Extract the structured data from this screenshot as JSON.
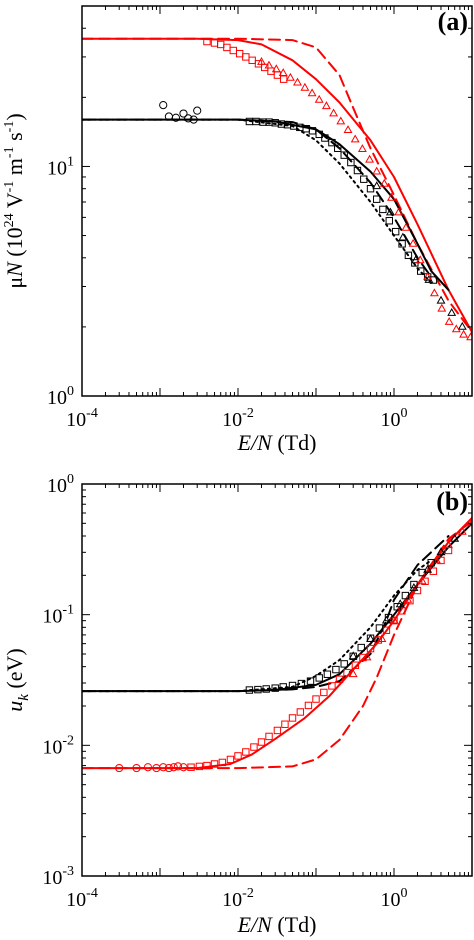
{
  "chart_data": [
    {
      "type": "line",
      "panel_label": "(a)",
      "xlabel_italic": "E/N",
      "xlabel_unit": " (Td)",
      "ylabel_parts": [
        "μ",
        "N",
        " (10",
        "24",
        " V",
        "-1",
        " m",
        "-1",
        " s",
        "-1",
        ")"
      ],
      "xscale": "log",
      "yscale": "log",
      "xlim": [
        0.0001,
        10
      ],
      "ylim": [
        1,
        50
      ],
      "x_ticks": [
        {
          "value": 0.0001,
          "base": "10",
          "exp": "-4"
        },
        {
          "value": 0.01,
          "base": "10",
          "exp": "-2"
        },
        {
          "value": 1,
          "base": "10",
          "exp": "0"
        }
      ],
      "y_ticks": [
        {
          "value": 1,
          "base": "10",
          "exp": "0"
        },
        {
          "value": 10,
          "base": "10",
          "exp": "1"
        }
      ],
      "series": [
        {
          "style": "solid",
          "color": "#ff0000",
          "width": 2,
          "x": [
            0.0001,
            0.003,
            0.01,
            0.02,
            0.05,
            0.1,
            0.2,
            0.5,
            1,
            2,
            5,
            10
          ],
          "y": [
            36,
            36,
            35.5,
            34,
            29,
            24,
            19,
            13,
            9,
            5.6,
            2.9,
            1.9
          ]
        },
        {
          "style": "dashed",
          "color": "#ff0000",
          "width": 2,
          "x": [
            0.0001,
            0.01,
            0.05,
            0.1,
            0.2,
            0.3,
            0.5,
            1,
            2,
            5,
            10
          ],
          "y": [
            36,
            36,
            35.5,
            33,
            25,
            18,
            12,
            7.5,
            4.6,
            2.6,
            1.9
          ]
        },
        {
          "style": "solid",
          "color": "#000000",
          "width": 2,
          "x": [
            0.0001,
            0.01,
            0.03,
            0.1,
            0.2,
            0.5,
            1,
            2,
            3,
            5
          ],
          "y": [
            16,
            16,
            15.7,
            14.5,
            12.5,
            9.5,
            7.2,
            4.6,
            3.5,
            2.9
          ]
        },
        {
          "style": "dashed",
          "color": "#000000",
          "width": 2,
          "x": [
            0.0001,
            0.01,
            0.05,
            0.1,
            0.2,
            0.5,
            1,
            2,
            3
          ],
          "y": [
            16,
            16,
            15.6,
            14.5,
            12,
            8.5,
            6,
            4,
            3.3
          ]
        },
        {
          "style": "dotted",
          "color": "#000000",
          "width": 2,
          "x": [
            0.0001,
            0.01,
            0.05,
            0.1,
            0.2,
            0.5,
            1,
            2,
            3
          ],
          "y": [
            16,
            16,
            15,
            13,
            10.3,
            7,
            5,
            3.6,
            3.1
          ]
        }
      ],
      "markers": [
        {
          "shape": "circle",
          "color": "#000000",
          "x": [
            0.0011,
            0.0013,
            0.0016,
            0.002,
            0.0023,
            0.0027,
            0.003
          ],
          "y": [
            18.5,
            16.5,
            16.3,
            17,
            16.2,
            16,
            17.5
          ]
        },
        {
          "shape": "square",
          "color": "#000000",
          "x": [
            0.014,
            0.017,
            0.021,
            0.025,
            0.03,
            0.036,
            0.043,
            0.052,
            0.062,
            0.075,
            0.09,
            0.11,
            0.13,
            0.16,
            0.19,
            0.23,
            0.28,
            0.34,
            0.41,
            0.5,
            0.6,
            0.72,
            0.87,
            1.05,
            1.27,
            1.53,
            1.85,
            2.2,
            2.7,
            3.2
          ],
          "y": [
            15.7,
            15.7,
            15.6,
            15.6,
            15.5,
            15.3,
            15.2,
            15,
            14.8,
            14.6,
            14.3,
            13.8,
            13.3,
            12.7,
            12,
            11.2,
            10.4,
            9.6,
            8.8,
            8,
            7.2,
            6.5,
            5.8,
            5.2,
            4.6,
            4.1,
            3.8,
            3.5,
            3.3,
            3.2
          ]
        },
        {
          "shape": "triangle",
          "color": "#000000",
          "x": [
            0.6,
            0.9,
            1.3,
            1.9,
            2.8,
            4,
            5.5,
            7.5
          ],
          "y": [
            8.2,
            6.3,
            4.9,
            3.9,
            3.2,
            2.6,
            2.3,
            2
          ]
        },
        {
          "shape": "square",
          "color": "#ff0000",
          "x": [
            0.004,
            0.005,
            0.006,
            0.0072,
            0.0087,
            0.0105,
            0.0126,
            0.0152,
            0.0183,
            0.022,
            0.0265,
            0.032,
            0.0385
          ],
          "y": [
            35,
            34.5,
            34,
            33,
            32,
            31,
            30,
            29,
            28,
            27,
            26,
            25,
            24
          ]
        },
        {
          "shape": "triangle",
          "color": "#ff0000",
          "x": [
            0.02,
            0.025,
            0.031,
            0.038,
            0.047,
            0.058,
            0.072,
            0.089,
            0.11,
            0.136,
            0.168,
            0.208,
            0.257,
            0.318,
            0.393,
            0.486,
            0.6,
            0.75,
            0.93,
            1.15,
            1.42,
            1.76,
            2.17,
            2.7,
            3.3,
            4.1,
            5.1,
            6.3,
            7.8,
            9.6
          ],
          "y": [
            28.5,
            27.5,
            26.5,
            25.5,
            24.3,
            23.2,
            22,
            20.8,
            19.5,
            18.3,
            17,
            15.7,
            14.4,
            13.1,
            11.9,
            10.7,
            9.5,
            8.4,
            7.3,
            6.3,
            5.4,
            4.6,
            3.9,
            3.3,
            2.8,
            2.4,
            2.1,
            1.95,
            1.85,
            1.8
          ]
        }
      ]
    },
    {
      "type": "line",
      "panel_label": "(b)",
      "xlabel_italic": "E/N",
      "xlabel_unit": " (Td)",
      "ylabel_parts": [
        "u",
        "k",
        " (eV)"
      ],
      "xscale": "log",
      "yscale": "log",
      "xlim": [
        0.0001,
        10
      ],
      "ylim": [
        0.001,
        1
      ],
      "x_ticks": [
        {
          "value": 0.0001,
          "base": "10",
          "exp": "-4"
        },
        {
          "value": 0.01,
          "base": "10",
          "exp": "-2"
        },
        {
          "value": 1,
          "base": "10",
          "exp": "0"
        }
      ],
      "y_ticks": [
        {
          "value": 0.001,
          "base": "10",
          "exp": "-3"
        },
        {
          "value": 0.01,
          "base": "10",
          "exp": "-2"
        },
        {
          "value": 0.1,
          "base": "10",
          "exp": "-1"
        },
        {
          "value": 1,
          "base": "10",
          "exp": "0"
        }
      ],
      "series": [
        {
          "style": "solid",
          "color": "#000000",
          "width": 2,
          "x": [
            0.0001,
            0.01,
            0.03,
            0.1,
            0.2,
            0.5,
            1,
            2,
            5,
            10
          ],
          "y": [
            0.026,
            0.026,
            0.0265,
            0.029,
            0.035,
            0.06,
            0.1,
            0.17,
            0.33,
            0.5
          ]
        },
        {
          "style": "dashed",
          "color": "#000000",
          "width": 2,
          "x": [
            0.0001,
            0.01,
            0.05,
            0.1,
            0.2,
            0.5,
            0.8,
            1,
            2,
            5
          ],
          "y": [
            0.026,
            0.026,
            0.0268,
            0.028,
            0.031,
            0.05,
            0.09,
            0.13,
            0.24,
            0.4
          ]
        },
        {
          "style": "dotted",
          "color": "#000000",
          "width": 2,
          "x": [
            0.0001,
            0.01,
            0.05,
            0.1,
            0.2,
            0.5,
            1,
            2,
            3
          ],
          "y": [
            0.026,
            0.026,
            0.028,
            0.034,
            0.045,
            0.08,
            0.14,
            0.22,
            0.26
          ]
        },
        {
          "style": "solid",
          "color": "#ff0000",
          "width": 2,
          "x": [
            0.0001,
            0.003,
            0.008,
            0.015,
            0.03,
            0.07,
            0.15,
            0.3,
            0.6,
            1,
            2,
            5,
            10
          ],
          "y": [
            0.0067,
            0.0067,
            0.0072,
            0.0085,
            0.0112,
            0.016,
            0.024,
            0.038,
            0.06,
            0.09,
            0.17,
            0.36,
            0.55
          ]
        },
        {
          "style": "dashed",
          "color": "#ff0000",
          "width": 2,
          "x": [
            0.0001,
            0.01,
            0.05,
            0.1,
            0.2,
            0.4,
            0.6,
            1,
            2,
            5,
            10
          ],
          "y": [
            0.0067,
            0.0067,
            0.0069,
            0.0078,
            0.011,
            0.02,
            0.033,
            0.07,
            0.17,
            0.38,
            0.52
          ]
        }
      ],
      "markers": [
        {
          "shape": "circle",
          "color": "#ff0000",
          "x": [
            0.0003,
            0.0005,
            0.0007,
            0.0009,
            0.0011,
            0.0013,
            0.0015,
            0.0017,
            0.002
          ],
          "y": [
            0.0067,
            0.0067,
            0.0068,
            0.0067,
            0.0068,
            0.0067,
            0.0068,
            0.0069,
            0.0068
          ]
        },
        {
          "shape": "square",
          "color": "#ff0000",
          "x": [
            0.0025,
            0.0032,
            0.004,
            0.005,
            0.0063,
            0.008,
            0.01,
            0.0126,
            0.016,
            0.02,
            0.025,
            0.032,
            0.04,
            0.05,
            0.063,
            0.08,
            0.1,
            0.126,
            0.16,
            0.2,
            0.25,
            0.32,
            0.4,
            0.5,
            0.63,
            0.8,
            1,
            1.26,
            1.6,
            2,
            2.5,
            3.2,
            4,
            5
          ],
          "y": [
            0.0068,
            0.0069,
            0.007,
            0.0072,
            0.0074,
            0.0078,
            0.0083,
            0.0089,
            0.0097,
            0.0106,
            0.0117,
            0.013,
            0.0145,
            0.0162,
            0.018,
            0.0202,
            0.0226,
            0.0254,
            0.0285,
            0.032,
            0.036,
            0.041,
            0.047,
            0.055,
            0.064,
            0.076,
            0.09,
            0.107,
            0.128,
            0.153,
            0.18,
            0.215,
            0.26,
            0.31
          ]
        },
        {
          "shape": "triangle",
          "color": "#ff0000",
          "x": [
            0.3,
            0.45,
            0.7,
            1,
            1.5,
            2.3,
            3.5,
            5,
            7.5,
            10
          ],
          "y": [
            0.035,
            0.047,
            0.065,
            0.09,
            0.13,
            0.18,
            0.26,
            0.34,
            0.43,
            0.5
          ]
        },
        {
          "shape": "square",
          "color": "#000000",
          "x": [
            0.014,
            0.018,
            0.023,
            0.03,
            0.038,
            0.05,
            0.065,
            0.085,
            0.11,
            0.14,
            0.18,
            0.23,
            0.3,
            0.38,
            0.5,
            0.65,
            0.85,
            1.1,
            1.4,
            1.8,
            2.3,
            3
          ],
          "y": [
            0.0265,
            0.0267,
            0.027,
            0.0274,
            0.028,
            0.0287,
            0.0297,
            0.031,
            0.0328,
            0.035,
            0.038,
            0.042,
            0.048,
            0.056,
            0.066,
            0.079,
            0.095,
            0.115,
            0.14,
            0.17,
            0.21,
            0.25
          ]
        },
        {
          "shape": "triangle",
          "color": "#000000",
          "x": [
            0.3,
            0.5,
            0.8,
            1.2,
            1.8,
            2.7,
            4,
            6
          ],
          "y": [
            0.048,
            0.065,
            0.09,
            0.12,
            0.16,
            0.22,
            0.3,
            0.38
          ]
        }
      ]
    }
  ]
}
